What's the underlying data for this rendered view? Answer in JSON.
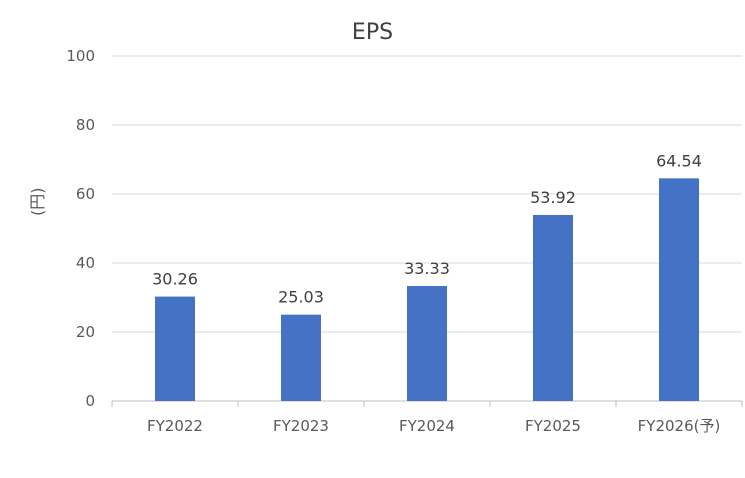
{
  "chart_data": {
    "type": "bar",
    "title": "EPS",
    "xlabel": "",
    "ylabel": "(円)",
    "categories": [
      "FY2022",
      "FY2023",
      "FY2024",
      "FY2025",
      "FY2026(予)"
    ],
    "values": [
      30.26,
      25.03,
      33.33,
      53.92,
      64.54
    ],
    "value_labels": [
      "30.26",
      "25.03",
      "33.33",
      "53.92",
      "64.54"
    ],
    "ylim": [
      0,
      100
    ],
    "yticks": [
      0,
      20,
      40,
      60,
      80,
      100
    ],
    "grid": true,
    "legend": "none",
    "bar_color": "#4472C4",
    "grid_color": "#D9D9D9",
    "axis_color": "#BFBFBF",
    "text_color": "#595959"
  }
}
